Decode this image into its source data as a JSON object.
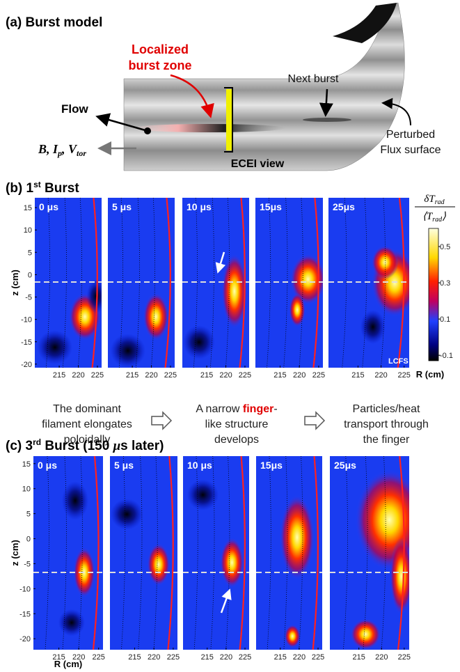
{
  "panel_a": {
    "title": "(a) Burst model",
    "burst_zone": [
      "Localized",
      "burst zone"
    ],
    "next_burst": "Next burst",
    "flow": "Flow",
    "field_label": [
      "B, I",
      "p",
      ", V",
      "tor"
    ],
    "perturbed": [
      "Perturbed",
      "Flux surface"
    ],
    "ecei_view": "ECEI view"
  },
  "panel_b": {
    "title": [
      "(b) 1",
      "st",
      " Burst"
    ],
    "times": [
      "0 μs",
      "5 μs",
      "10 μs",
      "15μs",
      "25μs"
    ],
    "zlabel": "z (cm)",
    "rlabel": "R (cm)",
    "zlim": [
      -20.8,
      17.2
    ],
    "zticks": [
      15,
      10,
      5,
      0,
      -5,
      -10,
      -15,
      -20
    ],
    "rlim": [
      208.6,
      226.1
    ],
    "rticks": [
      215,
      220,
      225
    ],
    "lcfs": "LCFS",
    "captions": [
      [
        [
          "The dominant"
        ],
        [
          "filament elongates"
        ],
        [
          "poloidally"
        ]
      ],
      [
        [
          "A narrow ",
          "finger",
          "-"
        ],
        [
          "like structure"
        ],
        [
          "develops"
        ]
      ],
      [
        [
          "Particles/heat"
        ],
        [
          "transport through"
        ],
        [
          "the finger"
        ]
      ]
    ],
    "colorbar": {
      "numerator": [
        "δT",
        "rad"
      ],
      "denominator": [
        "⟨T",
        "rad",
        "⟩"
      ],
      "lim": [
        -0.13,
        0.6
      ],
      "ticks": [
        0.5,
        0.3,
        0.1,
        -0.1
      ]
    }
  },
  "panel_c": {
    "title": [
      "(c) 3",
      "rd",
      " Burst (150 ",
      "μ",
      "s later)"
    ],
    "times": [
      "0 μs",
      "5 μs",
      "10 μs",
      "15μs",
      "25μs"
    ],
    "zlabel": "z (cm)",
    "rlabel": "R (cm)",
    "zlim": [
      -22.2,
      16.5
    ],
    "zticks": [
      15,
      10,
      5,
      0,
      -5,
      -10,
      -15,
      -20
    ],
    "rlim": [
      208.6,
      226.1
    ],
    "rticks": [
      215,
      220,
      225
    ]
  }
}
